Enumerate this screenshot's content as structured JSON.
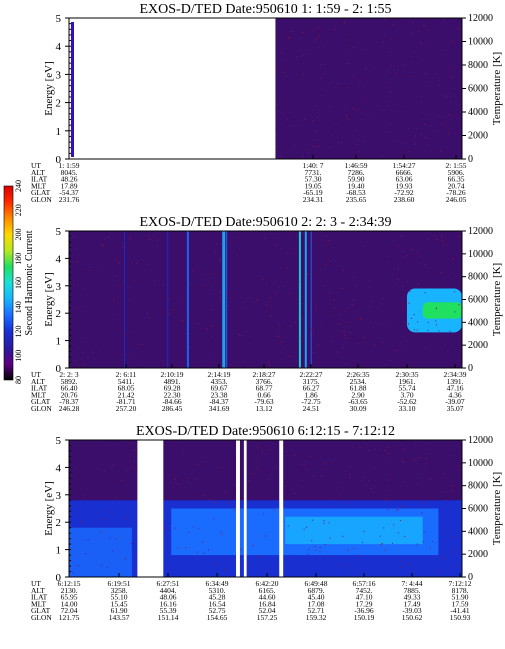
{
  "colors": {
    "background": "#ffffff",
    "noise": "#7a0a2c",
    "colorbar": [
      "#000000",
      "#5a0080",
      "#2a1aa0",
      "#1a2fd0",
      "#1a6cff",
      "#18b4ff",
      "#18e0d8",
      "#20e060",
      "#b8e820",
      "#ffd800",
      "#ff8a00",
      "#ff2a00",
      "#d80000"
    ]
  },
  "colorbar": {
    "label": "Second Harmonic Current",
    "ticks": [
      "80",
      "100",
      "120",
      "140",
      "160",
      "180",
      "200",
      "220",
      "240"
    ]
  },
  "orbit_labels": [
    "UT",
    "ALT",
    "ILAT",
    "MLT",
    "GLAT",
    "GLON"
  ],
  "chart_data": [
    {
      "type": "heatmap",
      "title": "EXOS-D/TED   Date:950610  1: 1:59 - 2: 1:55",
      "ylabel": "Energy [eV]",
      "y2label": "Temperature [K]",
      "ylim": [
        0,
        5
      ],
      "y_ticks": [
        "0",
        "1",
        "2",
        "3",
        "4",
        "5"
      ],
      "y2lim": [
        0,
        12000
      ],
      "y2_ticks": [
        "0",
        "2000",
        "4000",
        "6000",
        "8000",
        "10000",
        "12000"
      ],
      "data_gaps": [
        [
          0.03,
          0.525
        ]
      ],
      "columns": [
        {
          "ut": "1: 1:59",
          "alt": "8045.",
          "ilat": "48.26",
          "mlt": "17.89",
          "glat": "-54.37",
          "glon": "231.76"
        },
        {
          "ut": "1:40: 7",
          "alt": "7731.",
          "ilat": "57.30",
          "mlt": "19.05",
          "glat": "-65.19",
          "glon": "234.31"
        },
        {
          "ut": "1:46:59",
          "alt": "7286.",
          "ilat": "59.90",
          "mlt": "19.40",
          "glat": "-68.53",
          "glon": "235.65"
        },
        {
          "ut": "1:54:27",
          "alt": "6666.",
          "ilat": "63.06",
          "mlt": "19.93",
          "glat": "-72.92",
          "glon": "238.60"
        },
        {
          "ut": "2: 1:55",
          "alt": "5906.",
          "ilat": "66.35",
          "mlt": "20.74",
          "glat": "-78.26",
          "glon": "246.05"
        }
      ]
    },
    {
      "type": "heatmap",
      "title": "EXOS-D/TED   Date:950610  2: 2: 3 - 2:34:39",
      "ylabel": "Energy [eV]",
      "y2label": "Temperature [K]",
      "ylim": [
        0,
        5
      ],
      "y_ticks": [
        "0",
        "1",
        "2",
        "3",
        "4",
        "5"
      ],
      "y2lim": [
        0,
        12000
      ],
      "y2_ticks": [
        "0",
        "2000",
        "4000",
        "6000",
        "8000",
        "10000",
        "12000"
      ],
      "data_gaps": [],
      "columns": [
        {
          "ut": "2: 2: 3",
          "alt": "5892.",
          "ilat": "66.40",
          "mlt": "20.76",
          "glat": "-78.37",
          "glon": "246.28"
        },
        {
          "ut": "2: 6:11",
          "alt": "5411.",
          "ilat": "68.05",
          "mlt": "21.42",
          "glat": "-81.71",
          "glon": "257.20"
        },
        {
          "ut": "2:10:19",
          "alt": "4891.",
          "ilat": "69.28",
          "mlt": "22.30",
          "glat": "-84.66",
          "glon": "286.45"
        },
        {
          "ut": "2:14:19",
          "alt": "4353.",
          "ilat": "69.67",
          "mlt": "23.38",
          "glat": "-84.37",
          "glon": "341.69"
        },
        {
          "ut": "2:18:27",
          "alt": "3766.",
          "ilat": "68.77",
          "mlt": "0.66",
          "glat": "-79.63",
          "glon": "13.12"
        },
        {
          "ut": "2:22:27",
          "alt": "3175.",
          "ilat": "66.27",
          "mlt": "1.86",
          "glat": "-72.75",
          "glon": "24.51"
        },
        {
          "ut": "2:26:35",
          "alt": "2534.",
          "ilat": "61.88",
          "mlt": "2.90",
          "glat": "-63.65",
          "glon": "30.09"
        },
        {
          "ut": "2:30:35",
          "alt": "1961.",
          "ilat": "55.74",
          "mlt": "3.70",
          "glat": "-52.62",
          "glon": "33.10"
        },
        {
          "ut": "2:34:39",
          "alt": "1391.",
          "ilat": "47.16",
          "mlt": "4.36",
          "glat": "-39.07",
          "glon": "35.07"
        }
      ]
    },
    {
      "type": "heatmap",
      "title": "EXOS-D/TED   Date:950610  6:12:15 - 7:12:12",
      "ylabel": "Energy [eV]",
      "y2label": "Temperature [K]",
      "ylim": [
        0,
        5
      ],
      "y_ticks": [
        "0",
        "1",
        "2",
        "3",
        "4",
        "5"
      ],
      "y2lim": [
        0,
        12000
      ],
      "y2_ticks": [
        "0",
        "2000",
        "4000",
        "6000",
        "8000",
        "10000",
        "12000"
      ],
      "data_gaps": [
        [
          0.174,
          0.24
        ],
        [
          0.425,
          0.435
        ],
        [
          0.445,
          0.452
        ],
        [
          0.535,
          0.545
        ]
      ],
      "columns": [
        {
          "ut": "6:12:15",
          "alt": "2130.",
          "ilat": "65.95",
          "mlt": "14.00",
          "glat": "72.04",
          "glon": "121.75"
        },
        {
          "ut": "6:19:51",
          "alt": "3258.",
          "ilat": "55.10",
          "mlt": "15.45",
          "glat": "61.90",
          "glon": "143.57"
        },
        {
          "ut": "6:27:51",
          "alt": "4404.",
          "ilat": "48.06",
          "mlt": "16.16",
          "glat": "55.39",
          "glon": "151.14"
        },
        {
          "ut": "6:34:49",
          "alt": "5310.",
          "ilat": "45.28",
          "mlt": "16.54",
          "glat": "52.75",
          "glon": "154.65"
        },
        {
          "ut": "6:42:20",
          "alt": "6165.",
          "ilat": "44.60",
          "mlt": "16.84",
          "glat": "52.04",
          "glon": "157.25"
        },
        {
          "ut": "6:49:48",
          "alt": "6879.",
          "ilat": "45.40",
          "mlt": "17.08",
          "glat": "52.71",
          "glon": "159.32"
        },
        {
          "ut": "6:57:16",
          "alt": "7452.",
          "ilat": "47.10",
          "mlt": "17.29",
          "glat": "-36.96",
          "glon": "150.19"
        },
        {
          "ut": "7: 4:44",
          "alt": "7885.",
          "ilat": "49.33",
          "mlt": "17.49",
          "glat": "-39.03",
          "glon": "150.62"
        },
        {
          "ut": "7:12:12",
          "alt": "8178.",
          "ilat": "51.90",
          "mlt": "17.59",
          "glat": "-41.41",
          "glon": "150.93"
        }
      ]
    }
  ]
}
